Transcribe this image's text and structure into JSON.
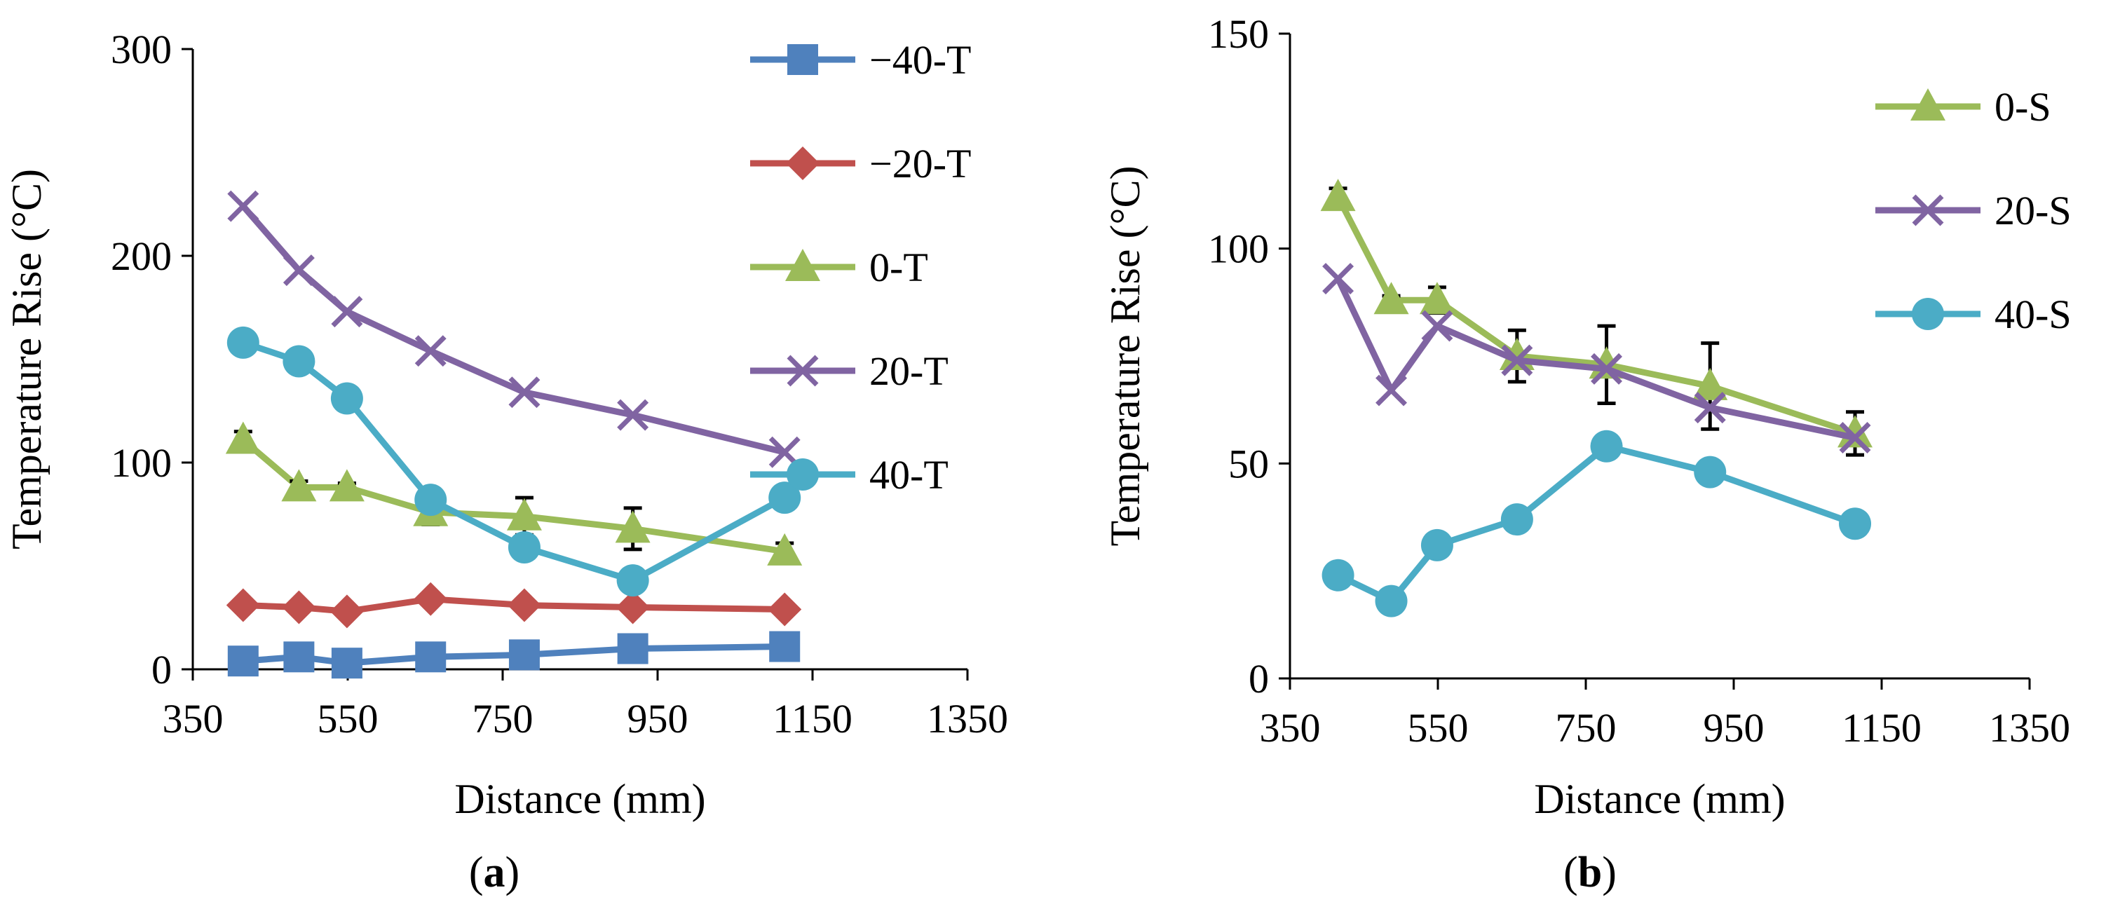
{
  "chart_data": [
    {
      "type": "line",
      "panel": "a",
      "caption_open": "(",
      "caption_letter": "a",
      "caption_close": ")",
      "xlabel": "Distance (mm)",
      "ylabel": "Temperature Rise (°C)",
      "xlim": [
        350,
        1350
      ],
      "ylim": [
        0,
        300
      ],
      "xticks": [
        350,
        550,
        750,
        950,
        1150,
        1350
      ],
      "yticks": [
        0,
        100,
        200,
        300
      ],
      "legend_position": "top-right",
      "x": [
        415,
        487,
        549,
        657,
        778,
        918,
        1114
      ],
      "series": [
        {
          "name": "−40-T",
          "color": "#4F81BD",
          "marker": "square",
          "values": [
            4,
            6,
            3,
            6,
            7,
            10,
            11
          ]
        },
        {
          "name": "−20-T",
          "color": "#C0504D",
          "marker": "diamond",
          "values": [
            31,
            30,
            28,
            34,
            31,
            30,
            29
          ]
        },
        {
          "name": "0-T",
          "color": "#9BBB59",
          "marker": "triangle",
          "values": [
            111,
            88,
            88,
            76,
            74,
            68,
            57
          ],
          "errors": [
            4,
            3,
            2,
            6,
            9,
            10,
            4
          ]
        },
        {
          "name": "20-T",
          "color": "#8064A2",
          "marker": "x",
          "values": [
            224,
            193,
            173,
            154,
            134,
            123,
            105
          ]
        },
        {
          "name": "40-T",
          "color": "#4BACC6",
          "marker": "circle",
          "values": [
            158,
            149,
            131,
            82,
            59,
            43,
            83
          ]
        }
      ]
    },
    {
      "type": "line",
      "panel": "b",
      "caption_open": "(",
      "caption_letter": "b",
      "caption_close": ")",
      "xlabel": "Distance (mm)",
      "ylabel": "Temperature Rise (°C)",
      "xlim": [
        350,
        1350
      ],
      "ylim": [
        0,
        150
      ],
      "xticks": [
        350,
        550,
        750,
        950,
        1150,
        1350
      ],
      "yticks": [
        0,
        50,
        100,
        150
      ],
      "legend_position": "top-right",
      "x": [
        415,
        487,
        549,
        657,
        778,
        918,
        1114
      ],
      "series": [
        {
          "name": "0-S",
          "color": "#9BBB59",
          "marker": "triangle",
          "values": [
            112,
            88,
            88,
            75,
            73,
            68,
            57
          ],
          "errors": [
            2,
            1,
            3,
            6,
            9,
            10,
            5
          ]
        },
        {
          "name": "20-S",
          "color": "#8064A2",
          "marker": "x",
          "values": [
            93,
            67,
            82,
            74,
            72,
            63,
            56
          ]
        },
        {
          "name": "40-S",
          "color": "#4BACC6",
          "marker": "circle",
          "values": [
            24,
            18,
            31,
            37,
            54,
            48,
            36
          ]
        }
      ]
    }
  ]
}
